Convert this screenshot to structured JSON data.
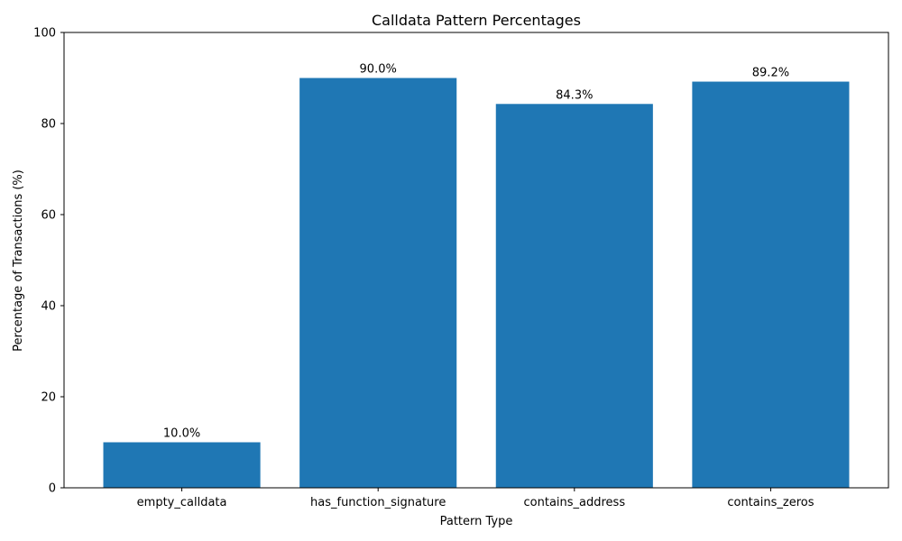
{
  "chart_data": {
    "type": "bar",
    "title": "Calldata Pattern Percentages",
    "xlabel": "Pattern Type",
    "ylabel": "Percentage of Transactions (%)",
    "categories": [
      "empty_calldata",
      "has_function_signature",
      "contains_address",
      "contains_zeros"
    ],
    "values": [
      10.0,
      90.0,
      84.3,
      89.2
    ],
    "data_labels": [
      "10.0%",
      "90.0%",
      "84.3%",
      "89.2%"
    ],
    "ylim": [
      0,
      100
    ],
    "yticks": [
      0,
      20,
      40,
      60,
      80,
      100
    ],
    "grid": false,
    "bar_color": "#1f77b4"
  }
}
